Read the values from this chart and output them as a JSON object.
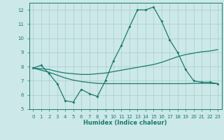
{
  "xlabel": "Humidex (Indice chaleur)",
  "x": [
    0,
    1,
    2,
    3,
    4,
    5,
    6,
    7,
    8,
    9,
    10,
    11,
    12,
    13,
    14,
    15,
    16,
    17,
    18,
    19,
    20,
    21,
    22,
    23
  ],
  "y_main": [
    7.9,
    8.1,
    7.5,
    6.8,
    5.6,
    5.5,
    6.4,
    6.1,
    5.9,
    7.0,
    8.4,
    9.5,
    10.8,
    12.0,
    12.0,
    12.2,
    11.2,
    9.9,
    9.0,
    7.8,
    7.0,
    6.9,
    6.9,
    6.8
  ],
  "y_upper": [
    7.9,
    7.85,
    7.8,
    7.65,
    7.55,
    7.5,
    7.45,
    7.45,
    7.5,
    7.55,
    7.65,
    7.75,
    7.85,
    7.95,
    8.05,
    8.15,
    8.3,
    8.5,
    8.7,
    8.85,
    8.95,
    9.05,
    9.1,
    9.2
  ],
  "y_lower": [
    7.9,
    7.75,
    7.6,
    7.4,
    7.2,
    7.05,
    6.95,
    6.88,
    6.82,
    6.8,
    6.8,
    6.8,
    6.8,
    6.8,
    6.8,
    6.8,
    6.8,
    6.8,
    6.8,
    6.8,
    6.82,
    6.82,
    6.82,
    6.8
  ],
  "line_color": "#1a7a6e",
  "bg_color": "#cce8e8",
  "grid_color": "#aacccc",
  "ylim": [
    5,
    12.5
  ],
  "yticks": [
    5,
    6,
    7,
    8,
    9,
    10,
    11,
    12
  ]
}
